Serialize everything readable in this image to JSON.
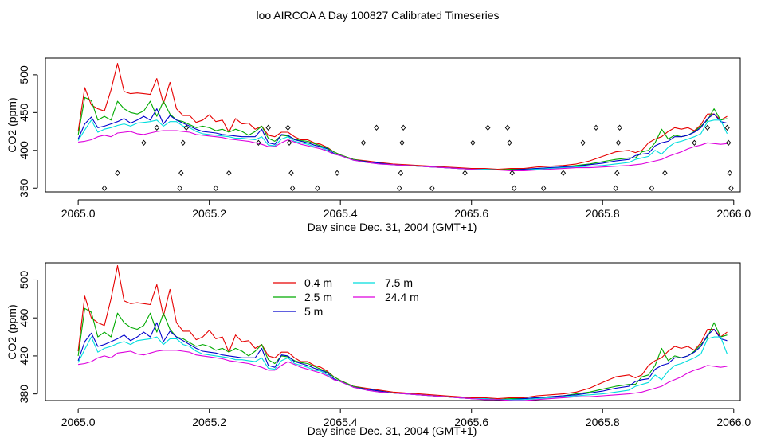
{
  "figure": {
    "title": "loo AIRCOA A  Day 100827  Calibrated Timeseries"
  },
  "chart_data": [
    {
      "type": "line",
      "xlabel": "Day since Dec. 31, 2004 (GMT+1)",
      "ylabel": "CO2 (ppm)",
      "xlim": [
        2064.95,
        2066.01
      ],
      "ylim": [
        345,
        522
      ],
      "xticks": [
        "2065.0",
        "2065.2",
        "2065.4",
        "2065.6",
        "2065.8",
        "2066.0"
      ],
      "yticks": [
        "350",
        "400",
        "450",
        "500"
      ],
      "grid": false,
      "legend": "none",
      "x": [
        2065.0,
        2065.01,
        2065.02,
        2065.03,
        2065.04,
        2065.05,
        2065.06,
        2065.07,
        2065.08,
        2065.09,
        2065.1,
        2065.11,
        2065.12,
        2065.13,
        2065.14,
        2065.15,
        2065.16,
        2065.17,
        2065.18,
        2065.19,
        2065.2,
        2065.21,
        2065.22,
        2065.23,
        2065.24,
        2065.25,
        2065.26,
        2065.27,
        2065.28,
        2065.29,
        2065.3,
        2065.31,
        2065.32,
        2065.33,
        2065.34,
        2065.35,
        2065.36,
        2065.37,
        2065.38,
        2065.39,
        2065.4,
        2065.42,
        2065.44,
        2065.46,
        2065.48,
        2065.5,
        2065.52,
        2065.54,
        2065.56,
        2065.58,
        2065.6,
        2065.62,
        2065.64,
        2065.66,
        2065.68,
        2065.7,
        2065.72,
        2065.74,
        2065.76,
        2065.78,
        2065.8,
        2065.82,
        2065.84,
        2065.85,
        2065.86,
        2065.87,
        2065.88,
        2065.89,
        2065.9,
        2065.91,
        2065.92,
        2065.93,
        2065.94,
        2065.95,
        2065.96,
        2065.97,
        2065.98,
        2065.99
      ],
      "series": [
        {
          "color": "#e60000",
          "values": [
            425,
            483,
            460,
            455,
            452,
            480,
            515,
            478,
            475,
            476,
            475,
            474,
            495,
            462,
            490,
            455,
            446,
            446,
            437,
            440,
            447,
            438,
            440,
            424,
            442,
            435,
            436,
            428,
            432,
            420,
            418,
            424,
            424,
            418,
            414,
            414,
            410,
            408,
            404,
            398,
            394,
            388,
            386,
            384,
            382,
            381,
            380,
            379,
            378,
            377,
            376,
            376,
            375,
            376,
            376,
            378,
            379,
            380,
            382,
            386,
            392,
            398,
            400,
            397,
            400,
            410,
            415,
            418,
            425,
            430,
            428,
            430,
            426,
            434,
            448,
            448,
            440,
            445
          ]
        },
        {
          "color": "#00aa00",
          "values": [
            420,
            470,
            466,
            440,
            445,
            440,
            465,
            455,
            450,
            448,
            452,
            465,
            445,
            465,
            448,
            440,
            438,
            434,
            430,
            432,
            430,
            426,
            428,
            424,
            428,
            425,
            420,
            425,
            432,
            416,
            412,
            420,
            419,
            415,
            413,
            412,
            409,
            406,
            403,
            398,
            394,
            388,
            385,
            383,
            381,
            380,
            379,
            378,
            377,
            376,
            375,
            375,
            374,
            375,
            375,
            376,
            377,
            378,
            380,
            382,
            385,
            388,
            390,
            390,
            398,
            400,
            410,
            428,
            415,
            420,
            418,
            420,
            425,
            432,
            440,
            455,
            440,
            442
          ]
        },
        {
          "color": "#0000cc",
          "values": [
            415,
            435,
            444,
            430,
            432,
            435,
            438,
            442,
            436,
            440,
            445,
            440,
            455,
            435,
            446,
            440,
            436,
            432,
            428,
            425,
            424,
            423,
            421,
            420,
            419,
            418,
            418,
            418,
            428,
            410,
            408,
            421,
            420,
            414,
            412,
            410,
            407,
            405,
            402,
            396,
            393,
            387,
            385,
            383,
            381,
            380,
            379,
            378,
            377,
            376,
            375,
            375,
            374,
            374,
            375,
            376,
            377,
            378,
            379,
            381,
            383,
            386,
            388,
            393,
            395,
            396,
            406,
            410,
            412,
            418,
            418,
            420,
            424,
            430,
            442,
            448,
            438,
            436
          ]
        },
        {
          "color": "#00dddd",
          "values": [
            413,
            427,
            440,
            424,
            428,
            430,
            433,
            435,
            432,
            436,
            437,
            438,
            440,
            432,
            438,
            438,
            432,
            430,
            425,
            422,
            421,
            420,
            419,
            418,
            416,
            416,
            415,
            414,
            418,
            407,
            406,
            415,
            418,
            412,
            410,
            408,
            405,
            404,
            400,
            395,
            393,
            387,
            384,
            382,
            381,
            380,
            379,
            378,
            377,
            376,
            375,
            375,
            374,
            374,
            374,
            375,
            376,
            377,
            378,
            379,
            380,
            382,
            384,
            388,
            390,
            392,
            400,
            395,
            404,
            410,
            412,
            415,
            418,
            422,
            438,
            440,
            440,
            422
          ]
        },
        {
          "color": "#dd00dd",
          "values": [
            411,
            412,
            414,
            418,
            420,
            418,
            423,
            424,
            425,
            422,
            421,
            423,
            425,
            426,
            426,
            426,
            425,
            424,
            421,
            420,
            419,
            418,
            417,
            415,
            414,
            413,
            412,
            410,
            408,
            405,
            405,
            410,
            414,
            411,
            408,
            406,
            404,
            402,
            399,
            395,
            393,
            387,
            384,
            382,
            381,
            380,
            379,
            378,
            377,
            376,
            375,
            374,
            374,
            373,
            373,
            374,
            375,
            376,
            377,
            377,
            378,
            379,
            380,
            381,
            382,
            384,
            386,
            388,
            392,
            395,
            398,
            402,
            405,
            407,
            410,
            409,
            408,
            409
          ]
        }
      ],
      "points": {
        "color": "#000000",
        "marker": "diamond",
        "x": [
          2065.04,
          2065.06,
          2065.1,
          2065.12,
          2065.155,
          2065.157,
          2065.16,
          2065.165,
          2065.21,
          2065.23,
          2065.275,
          2065.29,
          2065.32,
          2065.322,
          2065.325,
          2065.327,
          2065.365,
          2065.395,
          2065.435,
          2065.455,
          2065.49,
          2065.492,
          2065.494,
          2065.496,
          2065.54,
          2065.59,
          2065.602,
          2065.625,
          2065.655,
          2065.658,
          2065.662,
          2065.665,
          2065.71,
          2065.74,
          2065.77,
          2065.79,
          2065.82,
          2065.822,
          2065.824,
          2065.826,
          2065.875,
          2065.895,
          2065.94,
          2065.96,
          2065.99,
          2065.992,
          2065.994,
          2065.996
        ],
        "y": [
          350,
          370,
          410,
          430,
          350,
          370,
          410,
          430,
          350,
          370,
          410,
          430,
          430,
          410,
          370,
          350,
          350,
          370,
          410,
          430,
          350,
          370,
          410,
          430,
          350,
          370,
          410,
          430,
          430,
          410,
          370,
          350,
          350,
          370,
          410,
          430,
          350,
          370,
          410,
          430,
          350,
          370,
          410,
          430,
          430,
          410,
          370,
          350
        ]
      }
    },
    {
      "type": "line",
      "xlabel": "Day since Dec. 31, 2004 (GMT+1)",
      "ylabel": "CO2 (ppm)",
      "xlim": [
        2064.95,
        2066.01
      ],
      "ylim": [
        373,
        518
      ],
      "xticks": [
        "2065.0",
        "2065.2",
        "2065.4",
        "2065.6",
        "2065.8",
        "2066.0"
      ],
      "yticks": [
        "380",
        "420",
        "460",
        "500"
      ],
      "grid": false,
      "legend": "top-left",
      "legend_entries": [
        "0.4 m",
        "2.5 m",
        "5 m",
        "7.5 m",
        "24.4 m"
      ],
      "same_series_as_panel": 1
    }
  ]
}
